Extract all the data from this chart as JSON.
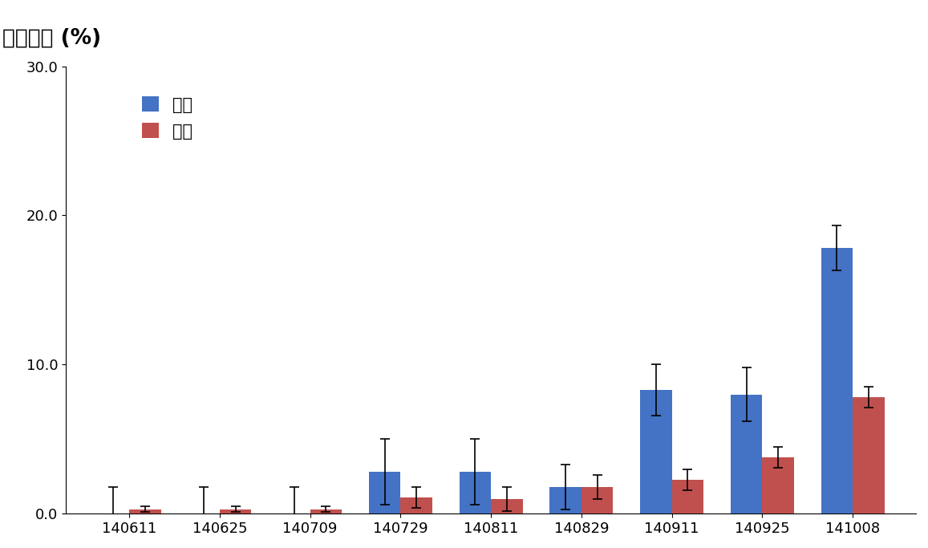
{
  "categories": [
    "140611",
    "140625",
    "140709",
    "140729",
    "140811",
    "140829",
    "140911",
    "140925",
    "141008"
  ],
  "gamhong_values": [
    0.0,
    0.0,
    0.0,
    2.8,
    2.8,
    1.8,
    8.3,
    8.0,
    17.8
  ],
  "hongro_values": [
    0.3,
    0.3,
    0.3,
    1.1,
    1.0,
    1.8,
    2.3,
    3.8,
    7.8
  ],
  "gamhong_errors": [
    1.8,
    1.8,
    1.8,
    2.2,
    2.2,
    1.5,
    1.7,
    1.8,
    1.5
  ],
  "hongro_errors": [
    0.2,
    0.2,
    0.2,
    0.7,
    0.8,
    0.8,
    0.7,
    0.7,
    0.7
  ],
  "gamhong_color": "#4472C4",
  "hongro_color": "#C0504D",
  "ylabel": "이병엽율 (%)",
  "ylim": [
    0.0,
    30.0
  ],
  "yticks": [
    0.0,
    10.0,
    20.0,
    30.0
  ],
  "ytick_labels": [
    "0.0",
    "10.0",
    "20.0",
    "30.0"
  ],
  "legend_gamhong": "감홍",
  "legend_hongro": "홍로",
  "bar_width": 0.35,
  "background_color": "#ffffff",
  "legend_fontsize": 15,
  "tick_fontsize": 13,
  "ylabel_fontsize": 19
}
